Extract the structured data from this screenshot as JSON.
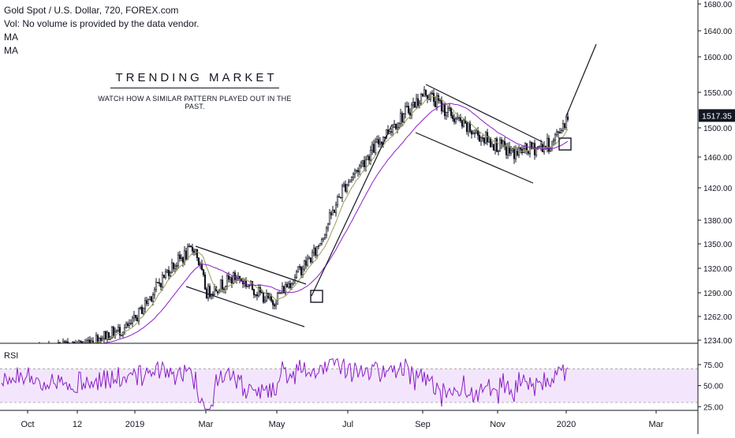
{
  "legend": {
    "symbol_line": "Gold Spot / U.S. Dollar, 720, FOREX.com",
    "vol_line": "Vol: No volume is provided by the data vendor.",
    "ma1": "MA",
    "ma2": "MA"
  },
  "annotation": {
    "title": "TRENDING MARKET",
    "subtitle": "WATCH HOW A SIMILAR PATTERN PLAYED OUT IN THE PAST."
  },
  "rsi_label": "RSI",
  "last_price_label": "1517.35",
  "colors": {
    "candle": "#131722",
    "ma_fast": "#9c9c5c",
    "ma_slow": "#8c1fc6",
    "rsi_line": "#8c1fc6",
    "rsi_band": "#f3e6fc",
    "axis_text": "#131722",
    "price_tag_bg": "#131722"
  },
  "chart_data": [
    {
      "type": "candlestick",
      "title": "Gold Spot / U.S. Dollar, 720, FOREX.com",
      "x_ticks": [
        "Oct",
        "12",
        "2019",
        "Mar",
        "May",
        "Jul",
        "Sep",
        "Nov",
        "2020",
        "Mar"
      ],
      "y_ticks": [
        1234,
        1262,
        1290,
        1320,
        1350,
        1380,
        1420,
        1460,
        1500,
        1550,
        1600,
        1640,
        1680
      ],
      "y_tick_labels": [
        "1234.00",
        "1262.00",
        "1290.00",
        "1320.00",
        "1350.00",
        "1380.00",
        "1420.00",
        "1460.00",
        "1500.00",
        "1550.00",
        "1600.00",
        "1640.00",
        "1680.00"
      ],
      "last_price": 1517.35,
      "price_path": [
        {
          "x": "Sep",
          "y": 1195
        },
        {
          "x": "Oct",
          "y": 1222
        },
        {
          "x": "12",
          "y": 1228
        },
        {
          "x": "2019",
          "y": 1250
        },
        {
          "x": "Feb",
          "y": 1320
        },
        {
          "x": "Feb-late",
          "y": 1346
        },
        {
          "x": "Mar",
          "y": 1290
        },
        {
          "x": "Apr",
          "y": 1310
        },
        {
          "x": "May",
          "y": 1278
        },
        {
          "x": "Jun",
          "y": 1340
        },
        {
          "x": "Jul",
          "y": 1420
        },
        {
          "x": "Aug",
          "y": 1500
        },
        {
          "x": "Sep",
          "y": 1550
        },
        {
          "x": "Oct",
          "y": 1500
        },
        {
          "x": "Nov",
          "y": 1465
        },
        {
          "x": "Dec",
          "y": 1478
        },
        {
          "x": "2020",
          "y": 1517
        }
      ],
      "series": [
        {
          "label": "MA",
          "kind": "moving-average-fast"
        },
        {
          "label": "MA",
          "kind": "moving-average-slow"
        }
      ]
    },
    {
      "type": "line",
      "title": "RSI",
      "y_ticks": [
        25,
        50,
        75
      ],
      "y_tick_labels": [
        "25.00",
        "50.00",
        "75.00"
      ],
      "band": [
        30,
        70
      ]
    }
  ]
}
